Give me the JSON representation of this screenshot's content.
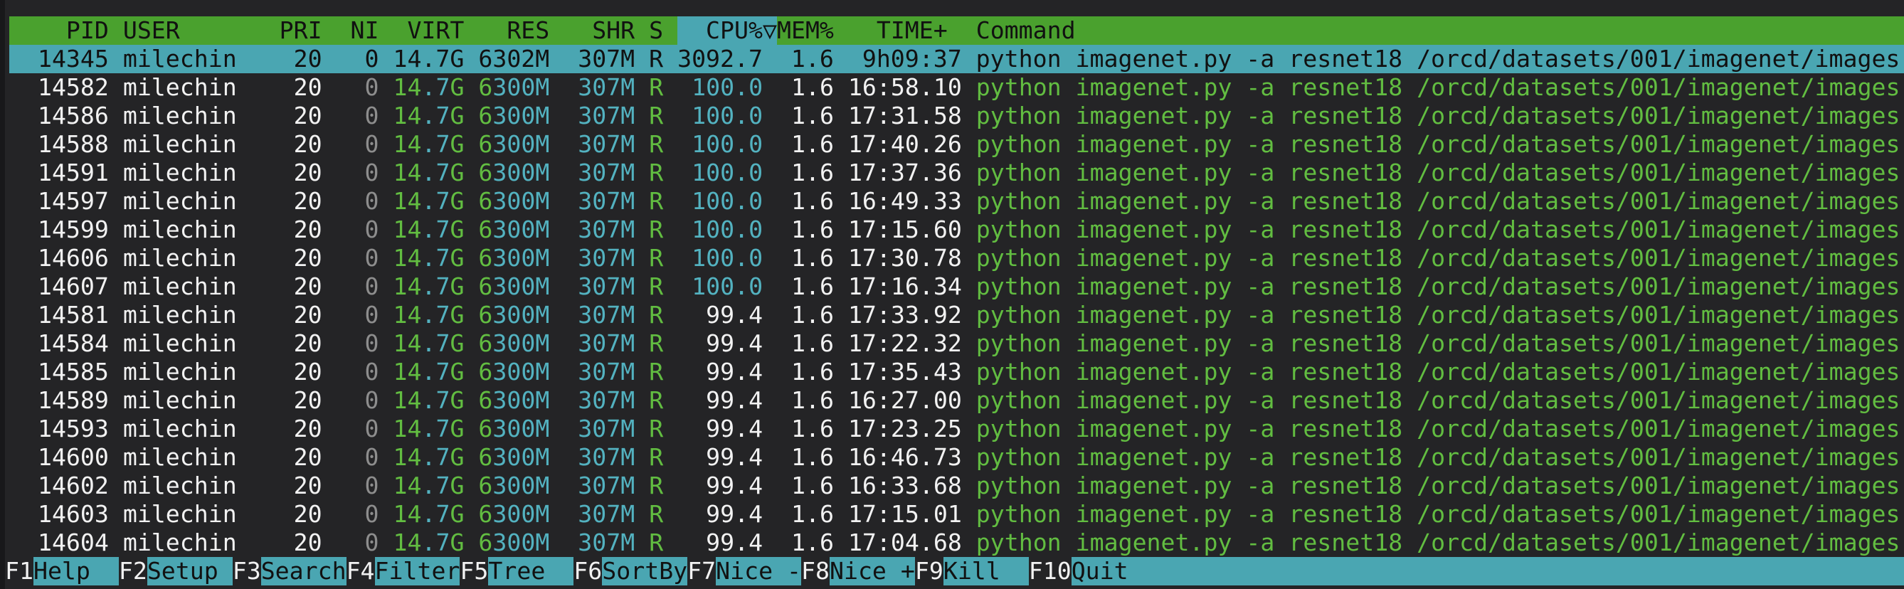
{
  "app": "htop process viewer",
  "colors": {
    "terminal_bg": "#242426",
    "edge": "#18181a",
    "green_bg": "#4aa12e",
    "cyan_bg": "#4aa6b2",
    "text_white": "#f2f2f2",
    "text_green": "#62bd41",
    "text_cyan": "#53b2c0",
    "text_gray": "#8d8d8d",
    "text_black": "#111111"
  },
  "header": {
    "columns": [
      "PID",
      "USER",
      "PRI",
      "NI",
      "VIRT",
      "RES",
      "SHR",
      "S",
      "CPU%",
      "MEM%",
      "TIME+",
      "Command"
    ],
    "left": "    PID USER       PRI  NI  VIRT   RES   SHR S ",
    "sort_prefix": "  CPU%",
    "sort_arrow": "▽",
    "right": "MEM%   TIME+  Command",
    "sort_column": "CPU%"
  },
  "rows": [
    {
      "pid": "14345",
      "user": "milechin",
      "pri": "20",
      "ni": "0",
      "virt": "14.7G",
      "res": "6302M",
      "shr": "307M",
      "s": "R",
      "cpu": "3092.7",
      "mem": "1.6",
      "time": "9h09:37",
      "command": "python imagenet.py -a resnet18 /orcd/datasets/001/imagenet/images",
      "selected": true
    },
    {
      "pid": "14582",
      "user": "milechin",
      "pri": "20",
      "ni": "0",
      "virt": "14.7G",
      "res": "6300M",
      "shr": "307M",
      "s": "R",
      "cpu": "100.0",
      "mem": "1.6",
      "time": "16:58.10",
      "command": "python imagenet.py -a resnet18 /orcd/datasets/001/imagenet/images",
      "selected": false
    },
    {
      "pid": "14586",
      "user": "milechin",
      "pri": "20",
      "ni": "0",
      "virt": "14.7G",
      "res": "6300M",
      "shr": "307M",
      "s": "R",
      "cpu": "100.0",
      "mem": "1.6",
      "time": "17:31.58",
      "command": "python imagenet.py -a resnet18 /orcd/datasets/001/imagenet/images",
      "selected": false
    },
    {
      "pid": "14588",
      "user": "milechin",
      "pri": "20",
      "ni": "0",
      "virt": "14.7G",
      "res": "6300M",
      "shr": "307M",
      "s": "R",
      "cpu": "100.0",
      "mem": "1.6",
      "time": "17:40.26",
      "command": "python imagenet.py -a resnet18 /orcd/datasets/001/imagenet/images",
      "selected": false
    },
    {
      "pid": "14591",
      "user": "milechin",
      "pri": "20",
      "ni": "0",
      "virt": "14.7G",
      "res": "6300M",
      "shr": "307M",
      "s": "R",
      "cpu": "100.0",
      "mem": "1.6",
      "time": "17:37.36",
      "command": "python imagenet.py -a resnet18 /orcd/datasets/001/imagenet/images",
      "selected": false
    },
    {
      "pid": "14597",
      "user": "milechin",
      "pri": "20",
      "ni": "0",
      "virt": "14.7G",
      "res": "6300M",
      "shr": "307M",
      "s": "R",
      "cpu": "100.0",
      "mem": "1.6",
      "time": "16:49.33",
      "command": "python imagenet.py -a resnet18 /orcd/datasets/001/imagenet/images",
      "selected": false
    },
    {
      "pid": "14599",
      "user": "milechin",
      "pri": "20",
      "ni": "0",
      "virt": "14.7G",
      "res": "6300M",
      "shr": "307M",
      "s": "R",
      "cpu": "100.0",
      "mem": "1.6",
      "time": "17:15.60",
      "command": "python imagenet.py -a resnet18 /orcd/datasets/001/imagenet/images",
      "selected": false
    },
    {
      "pid": "14606",
      "user": "milechin",
      "pri": "20",
      "ni": "0",
      "virt": "14.7G",
      "res": "6300M",
      "shr": "307M",
      "s": "R",
      "cpu": "100.0",
      "mem": "1.6",
      "time": "17:30.78",
      "command": "python imagenet.py -a resnet18 /orcd/datasets/001/imagenet/images",
      "selected": false
    },
    {
      "pid": "14607",
      "user": "milechin",
      "pri": "20",
      "ni": "0",
      "virt": "14.7G",
      "res": "6300M",
      "shr": "307M",
      "s": "R",
      "cpu": "100.0",
      "mem": "1.6",
      "time": "17:16.34",
      "command": "python imagenet.py -a resnet18 /orcd/datasets/001/imagenet/images",
      "selected": false
    },
    {
      "pid": "14581",
      "user": "milechin",
      "pri": "20",
      "ni": "0",
      "virt": "14.7G",
      "res": "6300M",
      "shr": "307M",
      "s": "R",
      "cpu": "99.4",
      "mem": "1.6",
      "time": "17:33.92",
      "command": "python imagenet.py -a resnet18 /orcd/datasets/001/imagenet/images",
      "selected": false
    },
    {
      "pid": "14584",
      "user": "milechin",
      "pri": "20",
      "ni": "0",
      "virt": "14.7G",
      "res": "6300M",
      "shr": "307M",
      "s": "R",
      "cpu": "99.4",
      "mem": "1.6",
      "time": "17:22.32",
      "command": "python imagenet.py -a resnet18 /orcd/datasets/001/imagenet/images",
      "selected": false
    },
    {
      "pid": "14585",
      "user": "milechin",
      "pri": "20",
      "ni": "0",
      "virt": "14.7G",
      "res": "6300M",
      "shr": "307M",
      "s": "R",
      "cpu": "99.4",
      "mem": "1.6",
      "time": "17:35.43",
      "command": "python imagenet.py -a resnet18 /orcd/datasets/001/imagenet/images",
      "selected": false
    },
    {
      "pid": "14589",
      "user": "milechin",
      "pri": "20",
      "ni": "0",
      "virt": "14.7G",
      "res": "6300M",
      "shr": "307M",
      "s": "R",
      "cpu": "99.4",
      "mem": "1.6",
      "time": "16:27.00",
      "command": "python imagenet.py -a resnet18 /orcd/datasets/001/imagenet/images",
      "selected": false
    },
    {
      "pid": "14593",
      "user": "milechin",
      "pri": "20",
      "ni": "0",
      "virt": "14.7G",
      "res": "6300M",
      "shr": "307M",
      "s": "R",
      "cpu": "99.4",
      "mem": "1.6",
      "time": "17:23.25",
      "command": "python imagenet.py -a resnet18 /orcd/datasets/001/imagenet/images",
      "selected": false
    },
    {
      "pid": "14600",
      "user": "milechin",
      "pri": "20",
      "ni": "0",
      "virt": "14.7G",
      "res": "6300M",
      "shr": "307M",
      "s": "R",
      "cpu": "99.4",
      "mem": "1.6",
      "time": "16:46.73",
      "command": "python imagenet.py -a resnet18 /orcd/datasets/001/imagenet/images",
      "selected": false
    },
    {
      "pid": "14602",
      "user": "milechin",
      "pri": "20",
      "ni": "0",
      "virt": "14.7G",
      "res": "6300M",
      "shr": "307M",
      "s": "R",
      "cpu": "99.4",
      "mem": "1.6",
      "time": "16:33.68",
      "command": "python imagenet.py -a resnet18 /orcd/datasets/001/imagenet/images",
      "selected": false
    },
    {
      "pid": "14603",
      "user": "milechin",
      "pri": "20",
      "ni": "0",
      "virt": "14.7G",
      "res": "6300M",
      "shr": "307M",
      "s": "R",
      "cpu": "99.4",
      "mem": "1.6",
      "time": "17:15.01",
      "command": "python imagenet.py -a resnet18 /orcd/datasets/001/imagenet/images",
      "selected": false
    },
    {
      "pid": "14604",
      "user": "milechin",
      "pri": "20",
      "ni": "0",
      "virt": "14.7G",
      "res": "6300M",
      "shr": "307M",
      "s": "R",
      "cpu": "99.4",
      "mem": "1.6",
      "time": "17:04.68",
      "command": "python imagenet.py -a resnet18 /orcd/datasets/001/imagenet/images",
      "selected": false
    }
  ],
  "fkeys": [
    {
      "key": "F1",
      "label": "Help  "
    },
    {
      "key": "F2",
      "label": "Setup "
    },
    {
      "key": "F3",
      "label": "Search"
    },
    {
      "key": "F4",
      "label": "Filter"
    },
    {
      "key": "F5",
      "label": "Tree  "
    },
    {
      "key": "F6",
      "label": "SortBy"
    },
    {
      "key": "F7",
      "label": "Nice -"
    },
    {
      "key": "F8",
      "label": "Nice +"
    },
    {
      "key": "F9",
      "label": "Kill  "
    },
    {
      "key": "F10",
      "label": "Quit  "
    }
  ]
}
